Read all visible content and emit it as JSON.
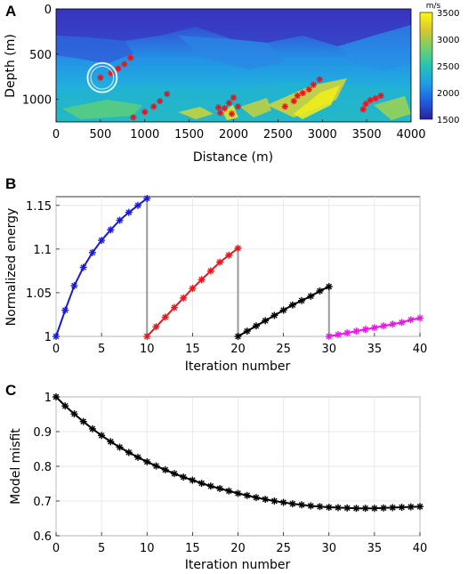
{
  "panel_labels": {
    "a": "A",
    "b": "B",
    "c": "C"
  },
  "chart_data": [
    {
      "panel": "A",
      "type": "heatmap",
      "xlabel": "Distance (m)",
      "ylabel": "Depth (m)",
      "xlim": [
        0,
        4000
      ],
      "ylim": [
        1250,
        0
      ],
      "xticks": [
        "0",
        "500",
        "1000",
        "1500",
        "2000",
        "2500",
        "3000",
        "3500",
        "4000"
      ],
      "yticks": [
        "0",
        "500",
        "1000"
      ],
      "colorbar": {
        "unit": "m/s",
        "range": [
          1500,
          3500
        ],
        "ticks": [
          "3500",
          "3000",
          "2500",
          "2000",
          "1500"
        ],
        "colors": [
          "#2b1f9e",
          "#1e5fe0",
          "#1f9be8",
          "#25c4b6",
          "#6fd16a",
          "#d8c532",
          "#f9f90f"
        ]
      },
      "markers": {
        "symbol": "*",
        "color": "#e8161c",
        "points": [
          [
            500,
            760
          ],
          [
            620,
            710
          ],
          [
            700,
            660
          ],
          [
            770,
            610
          ],
          [
            840,
            540
          ],
          [
            870,
            1200
          ],
          [
            1000,
            1140
          ],
          [
            1100,
            1080
          ],
          [
            1170,
            1020
          ],
          [
            1250,
            940
          ],
          [
            1850,
            1150
          ],
          [
            1900,
            1100
          ],
          [
            1950,
            1040
          ],
          [
            2000,
            980
          ],
          [
            2050,
            1080
          ],
          [
            1830,
            1090
          ],
          [
            1980,
            1160
          ],
          [
            2580,
            1080
          ],
          [
            2680,
            1020
          ],
          [
            2720,
            960
          ],
          [
            2780,
            930
          ],
          [
            2850,
            890
          ],
          [
            2900,
            840
          ],
          [
            2970,
            780
          ],
          [
            3460,
            1110
          ],
          [
            3490,
            1050
          ],
          [
            3540,
            1010
          ],
          [
            3600,
            990
          ],
          [
            3660,
            960
          ]
        ]
      },
      "circle": {
        "x": 520,
        "y": 760,
        "r": 100
      }
    },
    {
      "panel": "B",
      "type": "line",
      "xlabel": "Iteration number",
      "ylabel": "Normalized energy",
      "xlim": [
        0,
        40
      ],
      "ylim": [
        1,
        1.16
      ],
      "xticks": [
        "0",
        "5",
        "10",
        "15",
        "20",
        "25",
        "30",
        "35",
        "40"
      ],
      "yticks": [
        "1",
        "1.05",
        "1.1",
        "1.15"
      ],
      "series": [
        {
          "color": "#1a1ad6",
          "x": [
            0,
            1,
            2,
            3,
            4,
            5,
            6,
            7,
            8,
            9,
            10
          ],
          "values": [
            1.0,
            1.03,
            1.058,
            1.079,
            1.096,
            1.11,
            1.122,
            1.133,
            1.142,
            1.15,
            1.158
          ]
        },
        {
          "color": "#e8161c",
          "x": [
            10,
            11,
            12,
            13,
            14,
            15,
            16,
            17,
            18,
            19,
            20
          ],
          "values": [
            1.0,
            1.011,
            1.022,
            1.033,
            1.044,
            1.055,
            1.065,
            1.075,
            1.085,
            1.093,
            1.101
          ]
        },
        {
          "color": "#000000",
          "x": [
            20,
            21,
            22,
            23,
            24,
            25,
            26,
            27,
            28,
            29,
            30
          ],
          "values": [
            1.0,
            1.006,
            1.012,
            1.018,
            1.024,
            1.03,
            1.036,
            1.041,
            1.046,
            1.052,
            1.057
          ]
        },
        {
          "color": "#e817e8",
          "x": [
            30,
            31,
            32,
            33,
            34,
            35,
            36,
            37,
            38,
            39,
            40
          ],
          "values": [
            1.0,
            1.002,
            1.004,
            1.006,
            1.008,
            1.01,
            1.012,
            1.014,
            1.016,
            1.019,
            1.021
          ]
        }
      ],
      "connectors": {
        "color": "#999999",
        "x": [
          10,
          20,
          30
        ],
        "from": [
          1.158,
          1.101,
          1.057
        ],
        "to": [
          1.0,
          1.0,
          1.0
        ]
      }
    },
    {
      "panel": "C",
      "type": "line",
      "xlabel": "Iteration number",
      "ylabel": "Model misfit",
      "xlim": [
        0,
        40
      ],
      "ylim": [
        0.6,
        1
      ],
      "xticks": [
        "0",
        "5",
        "10",
        "15",
        "20",
        "25",
        "30",
        "35",
        "40"
      ],
      "yticks": [
        "0.6",
        "0.7",
        "0.8",
        "0.9",
        "1"
      ],
      "series": [
        {
          "color": "#000000",
          "x": [
            0,
            1,
            2,
            3,
            4,
            5,
            6,
            7,
            8,
            9,
            10,
            11,
            12,
            13,
            14,
            15,
            16,
            17,
            18,
            19,
            20,
            21,
            22,
            23,
            24,
            25,
            26,
            27,
            28,
            29,
            30,
            31,
            32,
            33,
            34,
            35,
            36,
            37,
            38,
            39,
            40
          ],
          "values": [
            1.0,
            0.974,
            0.951,
            0.929,
            0.908,
            0.889,
            0.871,
            0.855,
            0.84,
            0.826,
            0.813,
            0.801,
            0.79,
            0.779,
            0.769,
            0.76,
            0.751,
            0.743,
            0.736,
            0.729,
            0.722,
            0.716,
            0.71,
            0.705,
            0.7,
            0.696,
            0.692,
            0.689,
            0.686,
            0.684,
            0.682,
            0.681,
            0.68,
            0.679,
            0.679,
            0.679,
            0.68,
            0.681,
            0.682,
            0.683,
            0.684
          ]
        }
      ]
    }
  ]
}
